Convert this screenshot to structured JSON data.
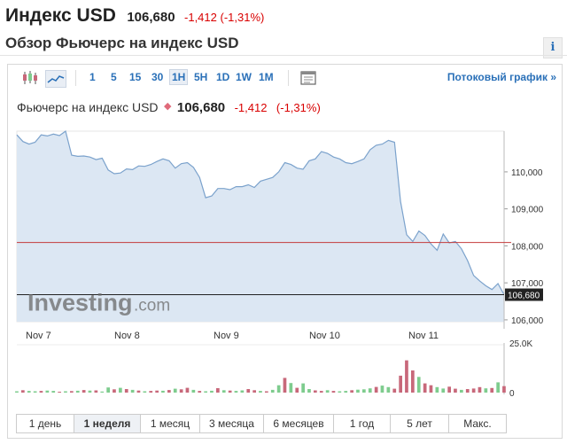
{
  "header": {
    "title": "Индекс USD",
    "price": "106,680",
    "change": "-1,412 (-1,31%)",
    "overview_title": "Обзор Фьючерс на индекс USD",
    "info_glyph": "i"
  },
  "toolbar": {
    "intervals": [
      "1",
      "5",
      "15",
      "30",
      "1H",
      "5H",
      "1D",
      "1W",
      "1M"
    ],
    "active_interval": "1H",
    "stream_link": "Потоковый график",
    "stream_arrow": "»",
    "icons": [
      "candlestick-icon",
      "area-chart-icon",
      "settings-icon"
    ]
  },
  "instrument": {
    "name": "Фьючерс на индекс USD",
    "marker": "◆",
    "price": "106,680",
    "change": "-1,412",
    "change_pct": "(-1,31%)"
  },
  "chart_data": {
    "type": "area",
    "x_labels": [
      "Nov 7",
      "Nov 8",
      "Nov 9",
      "Nov 10",
      "Nov 11"
    ],
    "y_ticks": [
      "110,000",
      "109,000",
      "108,000",
      "107,000",
      "106,000"
    ],
    "ylim": [
      105.95,
      111.1
    ],
    "prev_close": 108.092,
    "last_value": 106.68,
    "last_label": "106,680",
    "values": [
      111.0,
      110.82,
      110.75,
      110.8,
      111.0,
      110.97,
      111.02,
      110.98,
      111.1,
      110.45,
      110.42,
      110.43,
      110.4,
      110.33,
      110.37,
      110.05,
      109.95,
      109.97,
      110.08,
      110.06,
      110.16,
      110.15,
      110.2,
      110.28,
      110.35,
      110.3,
      110.1,
      110.22,
      110.25,
      110.12,
      109.85,
      109.3,
      109.35,
      109.55,
      109.55,
      109.52,
      109.6,
      109.6,
      109.65,
      109.58,
      109.75,
      109.8,
      109.85,
      110.0,
      110.25,
      110.2,
      110.1,
      110.07,
      110.3,
      110.35,
      110.55,
      110.5,
      110.4,
      110.35,
      110.25,
      110.22,
      110.28,
      110.35,
      110.6,
      110.72,
      110.75,
      110.85,
      110.8,
      109.2,
      108.3,
      108.12,
      108.4,
      108.28,
      108.05,
      107.88,
      108.32,
      108.08,
      108.12,
      107.92,
      107.6,
      107.2,
      107.05,
      106.92,
      106.82,
      106.98,
      106.68
    ],
    "volume_axis_label": "25.0K",
    "volume_zero_label": "0",
    "volume_max": 25000,
    "volumes": [
      700,
      1300,
      900,
      700,
      900,
      1100,
      900,
      500,
      700,
      800,
      1000,
      1400,
      1100,
      1200,
      600,
      2800,
      1800,
      2600,
      1900,
      1500,
      1100,
      700,
      900,
      1100,
      1000,
      1400,
      2100,
      1800,
      2600,
      1500,
      900,
      700,
      1000,
      2400,
      1300,
      1100,
      900,
      1200,
      1900,
      1300,
      900,
      700,
      1500,
      4000,
      8000,
      5200,
      2600,
      5000,
      1900,
      1200,
      900,
      1300,
      900,
      700,
      900,
      1300,
      1600,
      1800,
      2300,
      3100,
      3800,
      3000,
      2100,
      9200,
      17500,
      12000,
      8500,
      5000,
      4000,
      3000,
      2200,
      3200,
      2100,
      1500,
      1900,
      2200,
      3000,
      2300,
      2500,
      5600,
      3500
    ],
    "volume_up": [
      true,
      false,
      true,
      true,
      false,
      true,
      true,
      false,
      true,
      false,
      true,
      false,
      true,
      false,
      true,
      true,
      false,
      true,
      false,
      true,
      false,
      true,
      false,
      false,
      true,
      false,
      true,
      false,
      false,
      true,
      false,
      true,
      true,
      false,
      true,
      false,
      true,
      true,
      false,
      false,
      true,
      false,
      true,
      true,
      false,
      true,
      false,
      true,
      true,
      false,
      false,
      true,
      false,
      true,
      true,
      false,
      true,
      true,
      true,
      false,
      true,
      true,
      false,
      false,
      false,
      false,
      true,
      false,
      false,
      true,
      true,
      false,
      false,
      true,
      false,
      false,
      false,
      true,
      false,
      true,
      false
    ]
  },
  "ranges": [
    "1 день",
    "1 неделя",
    "1 месяц",
    "3 месяца",
    "6 месяцев",
    "1 год",
    "5 лет",
    "Макс."
  ],
  "active_range": "1 неделя",
  "watermark": {
    "main": "Investing",
    "suffix": ".com"
  },
  "colors": {
    "down": "#d90000",
    "link": "#2a70b8",
    "area": "#dce7f3",
    "line": "#7ba2cc",
    "vol_up": "#7ecc8e",
    "vol_down": "#c8687a",
    "prev_close_line": "#c43b3b"
  }
}
